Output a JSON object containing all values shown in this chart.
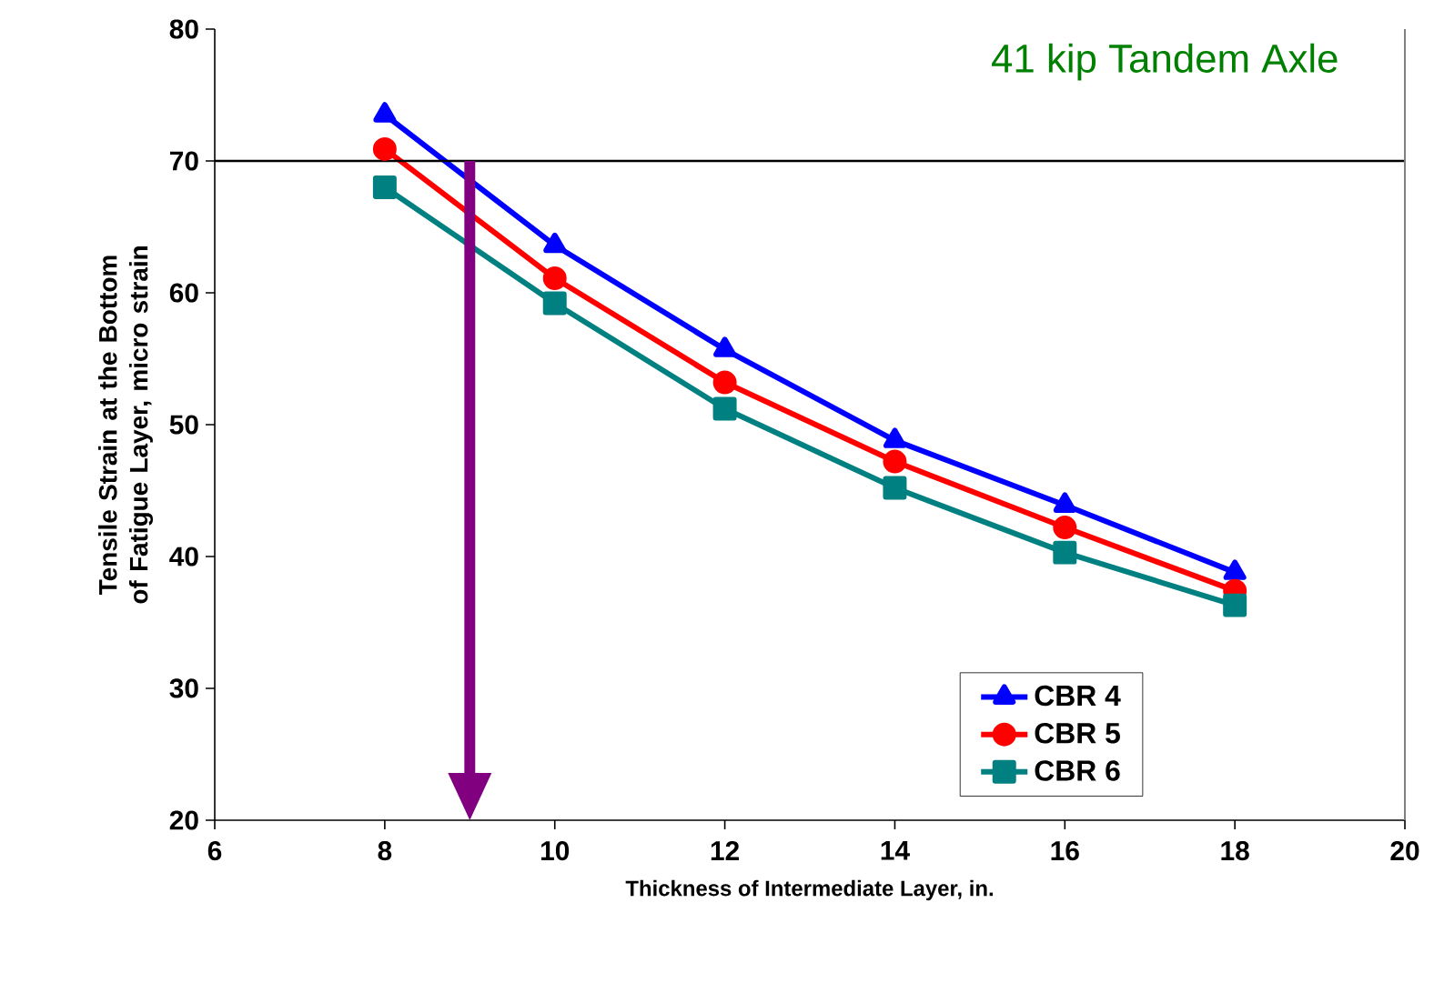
{
  "chart_data": {
    "type": "line",
    "title": "41 kip Tandem Axle",
    "xlabel": "Thickness of Intermediate Layer, in.",
    "ylabel": "Tensile Strain at the Bottom of Fatigue Layer, micro strain",
    "x": [
      8,
      10,
      12,
      14,
      16,
      18
    ],
    "series": [
      {
        "name": "CBR 4",
        "color": "#0000ff",
        "marker": "triangle",
        "values": [
          73.5,
          63.6,
          55.7,
          48.8,
          43.9,
          38.8
        ]
      },
      {
        "name": "CBR 5",
        "color": "#ff0000",
        "marker": "circle",
        "values": [
          70.9,
          61.1,
          53.2,
          47.2,
          42.2,
          37.4
        ]
      },
      {
        "name": "CBR 6",
        "color": "#008080",
        "marker": "square",
        "values": [
          68,
          59.2,
          51.2,
          45.2,
          40.3,
          36.3
        ]
      }
    ],
    "xlim": [
      6,
      20
    ],
    "xticks": [
      6,
      8,
      10,
      12,
      14,
      16,
      18,
      20
    ],
    "ylim": [
      20,
      80
    ],
    "yticks": [
      20,
      30,
      40,
      50,
      60,
      70,
      80
    ],
    "ref_lines": [
      {
        "axis": "y",
        "value": 70,
        "color": "#000000"
      },
      {
        "axis": "x",
        "value": 9,
        "color": "#800080"
      }
    ],
    "legend": "bottom right",
    "grid": false
  }
}
